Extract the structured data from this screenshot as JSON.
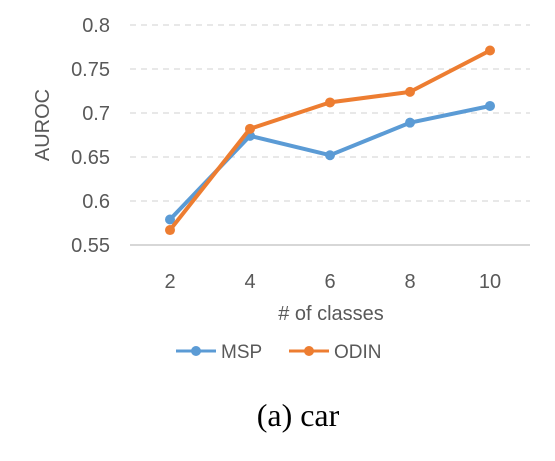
{
  "chart_data": {
    "type": "line",
    "x": [
      2,
      4,
      6,
      8,
      10
    ],
    "categories": [
      "2",
      "4",
      "6",
      "8",
      "10"
    ],
    "series": [
      {
        "name": "MSP",
        "values": [
          0.579,
          0.674,
          0.652,
          0.689,
          0.708
        ],
        "color": "#5b9bd5"
      },
      {
        "name": "ODIN",
        "values": [
          0.567,
          0.682,
          0.712,
          0.724,
          0.771
        ],
        "color": "#ed7d31"
      }
    ],
    "xlabel": "# of classes",
    "ylabel": "AUROC",
    "ylim": [
      0.55,
      0.8
    ],
    "yticks": [
      "0.55",
      "0.6",
      "0.65",
      "0.7",
      "0.75",
      "0.8"
    ],
    "grid": true,
    "legend_position": "bottom"
  },
  "caption": "(a) car"
}
